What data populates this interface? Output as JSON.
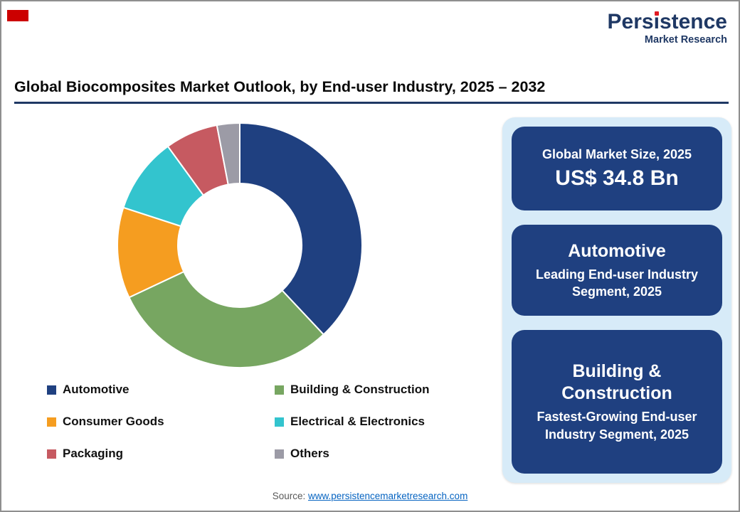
{
  "page": {
    "title": "Global Biocomposites Market Outlook, by End-user Industry, 2025 – 2032",
    "source_label": "Source:",
    "source_link": "www.persistencemarketresearch.com"
  },
  "logo": {
    "name": "Persistence",
    "tagline": "Market Research",
    "text_color": "#1F3864",
    "accent_color": "#E11B22"
  },
  "chart_data": {
    "type": "pie",
    "variant": "donut",
    "title": "Global Biocomposites Market Outlook, by End-user Industry, 2025 – 2032",
    "unit": "%",
    "start_angle_deg": 0,
    "direction": "clockwise",
    "legend_position": "bottom",
    "legend_columns": 2,
    "segments": [
      {
        "label": "Automotive",
        "value": 38,
        "color": "#1F4080"
      },
      {
        "label": "Building & Construction",
        "value": 30,
        "color": "#77A661"
      },
      {
        "label": "Consumer Goods",
        "value": 12,
        "color": "#F59D20"
      },
      {
        "label": "Electrical & Electronics",
        "value": 10,
        "color": "#33C4CE"
      },
      {
        "label": "Packaging",
        "value": 7,
        "color": "#C65A61"
      },
      {
        "label": "Others",
        "value": 3,
        "color": "#9C9BA6"
      }
    ]
  },
  "panel": {
    "background": "#D7EBF8",
    "card_color": "#1F4080",
    "cards": [
      {
        "title": "Global Market Size, 2025",
        "value": "US$ 34.8 Bn"
      },
      {
        "title": "Automotive",
        "subtitle": "Leading End-user Industry Segment, 2025"
      },
      {
        "title": "Building & Construction",
        "subtitle": "Fastest-Growing End-user Industry Segment, 2025"
      }
    ]
  }
}
